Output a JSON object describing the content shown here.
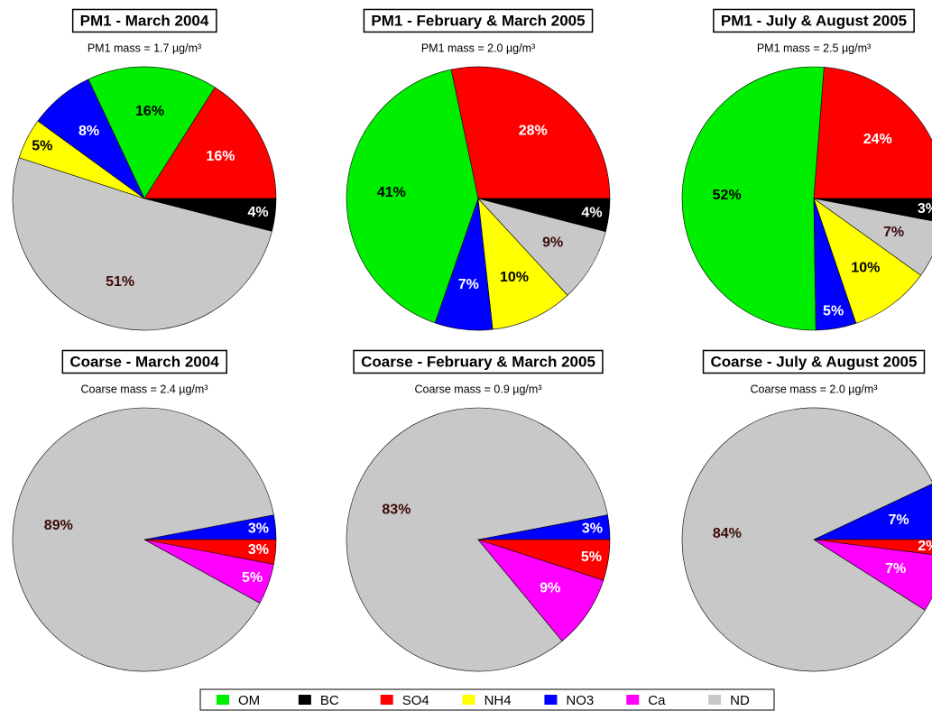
{
  "chart_data": [
    {
      "type": "pie",
      "title": "PM1 - March 2004",
      "subtitle": "PM1 mass = 1.7 µg/m³",
      "categories": [
        "SO4",
        "OM",
        "NO3",
        "NH4",
        "ND",
        "BC"
      ],
      "values": [
        16,
        16,
        8,
        5,
        51,
        4
      ],
      "value_labels": [
        "16%",
        "16%",
        "8%",
        "5%",
        "51%",
        "4%"
      ]
    },
    {
      "type": "pie",
      "title": "PM1 - February & March 2005",
      "subtitle": "PM1 mass = 2.0 µg/m³",
      "categories": [
        "SO4",
        "OM",
        "NO3",
        "NH4",
        "ND",
        "BC"
      ],
      "values": [
        28,
        41,
        7,
        10,
        9,
        4
      ],
      "value_labels": [
        "28%",
        "41%",
        "7%",
        "10%",
        "9%",
        "4%"
      ]
    },
    {
      "type": "pie",
      "title": "PM1 - July & August 2005",
      "subtitle": "PM1 mass = 2.5 µg/m³",
      "categories": [
        "SO4",
        "OM",
        "NO3",
        "NH4",
        "ND",
        "BC"
      ],
      "values": [
        24,
        52,
        5,
        10,
        7,
        3
      ],
      "value_labels": [
        "24%",
        "52%",
        "5%",
        "10%",
        "7%",
        "3%"
      ]
    },
    {
      "type": "pie",
      "title": "Coarse - March 2004",
      "subtitle": "Coarse mass = 2.4 µg/m³",
      "categories": [
        "NO3",
        "ND",
        "Ca",
        "SO4"
      ],
      "values": [
        3,
        89,
        5,
        3
      ],
      "value_labels": [
        "3%",
        "89%",
        "5%",
        "3%"
      ]
    },
    {
      "type": "pie",
      "title": "Coarse - February & March 2005",
      "subtitle": "Coarse mass = 0.9 µg/m³",
      "categories": [
        "NO3",
        "ND",
        "Ca",
        "SO4"
      ],
      "values": [
        3,
        83,
        9,
        5
      ],
      "value_labels": [
        "3%",
        "83%",
        "9%",
        "5%"
      ]
    },
    {
      "type": "pie",
      "title": "Coarse - July & August 2005",
      "subtitle": "Coarse mass = 2.0 µg/m³",
      "categories": [
        "NO3",
        "ND",
        "Ca",
        "SO4"
      ],
      "values": [
        7,
        84,
        7,
        2
      ],
      "value_labels": [
        "7%",
        "84%",
        "7%",
        "2%"
      ]
    }
  ],
  "legend": {
    "categories": [
      "OM",
      "BC",
      "SO4",
      "NH4",
      "NO3",
      "Ca",
      "ND"
    ],
    "colors": [
      "#00ee00",
      "#000000",
      "#ff0000",
      "#ffff00",
      "#0000ff",
      "#ff00ff",
      "#c8c8c8"
    ]
  }
}
